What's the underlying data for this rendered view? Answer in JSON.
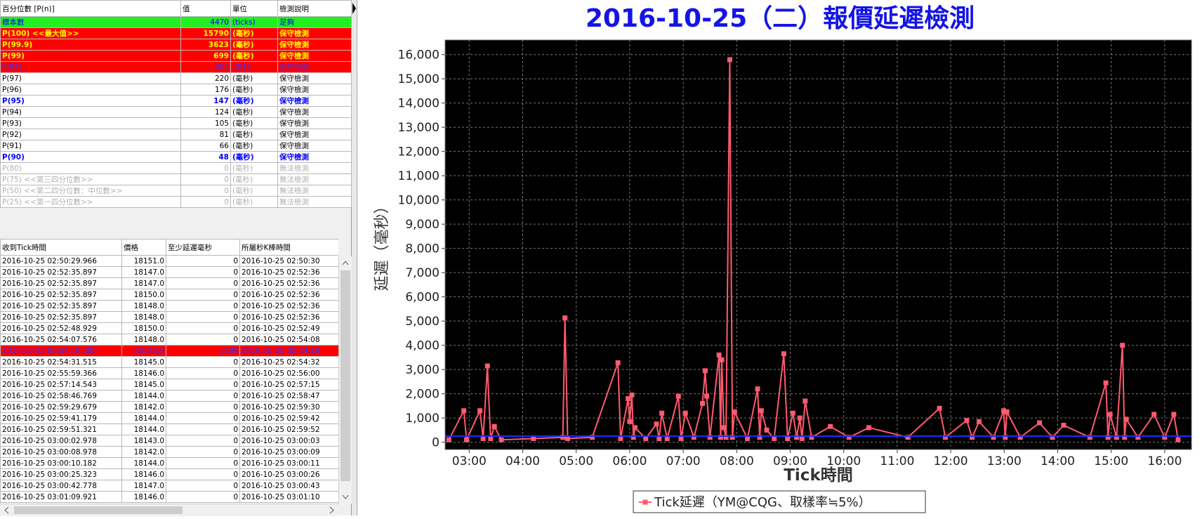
{
  "percentile_table": {
    "headers": [
      "百分位數 [P(n)]",
      "值",
      "單位",
      "檢測說明"
    ],
    "rows": [
      [
        "標本數",
        4470,
        "(ticks)",
        "足夠"
      ],
      [
        "P(100) <<最大值>>",
        15790,
        "(毫秒)",
        "保守檢測"
      ],
      [
        "P(99.9)",
        3623,
        "(毫秒)",
        "保守檢測"
      ],
      [
        "P(99)",
        699,
        "(毫秒)",
        "保守檢測"
      ],
      [
        "P(98)",
        304,
        "(毫秒)",
        "保守檢測"
      ],
      [
        "P(97)",
        220,
        "(毫秒)",
        "保守檢測"
      ],
      [
        "P(96)",
        176,
        "(毫秒)",
        "保守檢測"
      ],
      [
        "P(95)",
        147,
        "(毫秒)",
        "保守檢測"
      ],
      [
        "P(94)",
        124,
        "(毫秒)",
        "保守檢測"
      ],
      [
        "P(93)",
        105,
        "(毫秒)",
        "保守檢測"
      ],
      [
        "P(92)",
        81,
        "(毫秒)",
        "保守檢測"
      ],
      [
        "P(91)",
        66,
        "(毫秒)",
        "保守檢測"
      ],
      [
        "P(90)",
        48,
        "(毫秒)",
        "保守檢測"
      ],
      [
        "P(80)",
        0,
        "(毫秒)",
        "無法檢測"
      ],
      [
        "P(75) <<第三四分位數>>",
        0,
        "(毫秒)",
        "無法檢測"
      ],
      [
        "P(50) <<第二四分位數：中位數>>",
        0,
        "(毫秒)",
        "無法檢測"
      ],
      [
        "P(25) <<第一四分位數>>",
        0,
        "(毫秒)",
        "無法檢測"
      ]
    ]
  },
  "tick_table": {
    "headers": [
      "收到Tick時間",
      "價格",
      "至少延遲毫秒",
      "所屬秒K棒時間"
    ],
    "rows": [
      [
        "2016-10-25 02:50:29.966",
        "18151.0",
        0,
        "2016-10-25 02:50:30"
      ],
      [
        "2016-10-25 02:52:35.897",
        "18147.0",
        0,
        "2016-10-25 02:52:36"
      ],
      [
        "2016-10-25 02:52:35.897",
        "18147.0",
        0,
        "2016-10-25 02:52:36"
      ],
      [
        "2016-10-25 02:52:35.897",
        "18150.0",
        0,
        "2016-10-25 02:52:36"
      ],
      [
        "2016-10-25 02:52:35.897",
        "18148.0",
        0,
        "2016-10-25 02:52:36"
      ],
      [
        "2016-10-25 02:52:35.897",
        "18148.0",
        0,
        "2016-10-25 02:52:36"
      ],
      [
        "2016-10-25 02:52:48.929",
        "18150.0",
        0,
        "2016-10-25 02:52:49"
      ],
      [
        "2016-10-25 02:54:07.576",
        "18148.0",
        0,
        "2016-10-25 02:54:08"
      ],
      [
        "2016-10-25 02:54:19.280",
        "18146.0",
        1280,
        "2016-10-25 02:54:18"
      ],
      [
        "2016-10-25 02:54:31.515",
        "18145.0",
        0,
        "2016-10-25 02:54:32"
      ],
      [
        "2016-10-25 02:55:59.366",
        "18146.0",
        0,
        "2016-10-25 02:56:00"
      ],
      [
        "2016-10-25 02:57:14.543",
        "18145.0",
        0,
        "2016-10-25 02:57:15"
      ],
      [
        "2016-10-25 02:58:46.769",
        "18144.0",
        0,
        "2016-10-25 02:58:47"
      ],
      [
        "2016-10-25 02:59:29.679",
        "18142.0",
        0,
        "2016-10-25 02:59:30"
      ],
      [
        "2016-10-25 02:59:41.179",
        "18144.0",
        0,
        "2016-10-25 02:59:42"
      ],
      [
        "2016-10-25 02:59:51.321",
        "18144.0",
        0,
        "2016-10-25 02:59:52"
      ],
      [
        "2016-10-25 03:00:02.978",
        "18143.0",
        0,
        "2016-10-25 03:00:03"
      ],
      [
        "2016-10-25 03:00:08.978",
        "18142.0",
        0,
        "2016-10-25 03:00:09"
      ],
      [
        "2016-10-25 03:00:10.182",
        "18144.0",
        0,
        "2016-10-25 03:00:11"
      ],
      [
        "2016-10-25 03:00:25.323",
        "18146.0",
        0,
        "2016-10-25 03:00:26"
      ],
      [
        "2016-10-25 03:00:42.778",
        "18147.0",
        0,
        "2016-10-25 03:00:43"
      ],
      [
        "2016-10-25 03:01:09.921",
        "18146.0",
        0,
        "2016-10-25 03:01:10"
      ]
    ]
  },
  "chart_data": {
    "type": "line",
    "title": "2016-10-25（二）報價延遲檢測",
    "x_label": "Tick時間",
    "y_label": "延遲（毫秒）",
    "x": [
      2.62,
      2.9,
      2.95,
      3.2,
      3.26,
      3.34,
      3.4,
      3.47,
      3.6,
      4.2,
      4.75,
      4.79,
      4.84,
      5.3,
      5.78,
      5.83,
      5.97,
      6.0,
      6.04,
      6.07,
      6.1,
      6.3,
      6.5,
      6.55,
      6.6,
      6.7,
      6.91,
      6.96,
      7.04,
      7.2,
      7.36,
      7.41,
      7.44,
      7.5,
      7.67,
      7.7,
      7.72,
      7.76,
      7.8,
      7.87,
      7.92,
      7.96,
      8.2,
      8.39,
      8.43,
      8.46,
      8.56,
      8.7,
      8.88,
      8.95,
      9.05,
      9.12,
      9.18,
      9.22,
      9.28,
      9.4,
      9.75,
      10.1,
      10.47,
      11.2,
      11.79,
      11.9,
      12.3,
      12.4,
      12.53,
      12.8,
      12.99,
      13.02,
      13.05,
      13.3,
      13.66,
      13.9,
      14.11,
      14.6,
      14.9,
      14.94,
      14.98,
      15.1,
      15.21,
      15.25,
      15.28,
      15.5,
      15.8,
      16.0,
      16.17,
      16.25
    ],
    "series": [
      {
        "name": "Tick延遲（YM@CQG、取樣率≒5%）",
        "color": "#ff5a6e",
        "values": [
          100,
          1300,
          100,
          1300,
          150,
          3150,
          150,
          650,
          100,
          150,
          200,
          5130,
          150,
          200,
          3280,
          150,
          1800,
          850,
          1950,
          200,
          600,
          150,
          750,
          150,
          1200,
          150,
          1900,
          150,
          1200,
          200,
          1600,
          2950,
          1900,
          200,
          3600,
          200,
          3400,
          600,
          200,
          15790,
          200,
          1250,
          150,
          2200,
          200,
          1300,
          500,
          150,
          3650,
          150,
          1200,
          200,
          1000,
          150,
          1700,
          200,
          650,
          200,
          600,
          200,
          1400,
          200,
          900,
          200,
          850,
          200,
          1300,
          200,
          1250,
          200,
          800,
          200,
          700,
          200,
          2450,
          200,
          1150,
          200,
          4000,
          200,
          950,
          200,
          1150,
          200,
          1150,
          100
        ]
      }
    ],
    "reference_line": {
      "value": 250,
      "color": "#1e2cff"
    },
    "xlim": [
      2.55,
      16.5
    ],
    "ylim": [
      -300,
      16600
    ],
    "xticks": [
      {
        "value": 3,
        "label": "03:00"
      },
      {
        "value": 4,
        "label": "04:00"
      },
      {
        "value": 5,
        "label": "05:00"
      },
      {
        "value": 6,
        "label": "06:00"
      },
      {
        "value": 7,
        "label": "07:00"
      },
      {
        "value": 8,
        "label": "08:00"
      },
      {
        "value": 9,
        "label": "09:00"
      },
      {
        "value": 10,
        "label": "10:00"
      },
      {
        "value": 11,
        "label": "11:00"
      },
      {
        "value": 12,
        "label": "12:00"
      },
      {
        "value": 13,
        "label": "13:00"
      },
      {
        "value": 14,
        "label": "14:00"
      },
      {
        "value": 15,
        "label": "15:00"
      },
      {
        "value": 16,
        "label": "16:00"
      }
    ],
    "yticks": [
      0,
      {
        "value": 1000,
        "label": "1,000"
      },
      {
        "value": 2000,
        "label": "2,000"
      },
      {
        "value": 3000,
        "label": "3,000"
      },
      {
        "value": 4000,
        "label": "4,000"
      },
      {
        "value": 5000,
        "label": "5,000"
      },
      {
        "value": 6000,
        "label": "6,000"
      },
      {
        "value": 7000,
        "label": "7,000"
      },
      {
        "value": 8000,
        "label": "8,000"
      },
      {
        "value": 9000,
        "label": "9,000"
      },
      {
        "value": 10000,
        "label": "10,000"
      },
      {
        "value": 11000,
        "label": "11,000"
      },
      {
        "value": 12000,
        "label": "12,000"
      },
      {
        "value": 13000,
        "label": "13,000"
      },
      {
        "value": 14000,
        "label": "14,000"
      },
      {
        "value": 15000,
        "label": "15,000"
      },
      {
        "value": 16000,
        "label": "16,000"
      }
    ],
    "grid": true,
    "legend": "bottom",
    "background": "#000000"
  }
}
